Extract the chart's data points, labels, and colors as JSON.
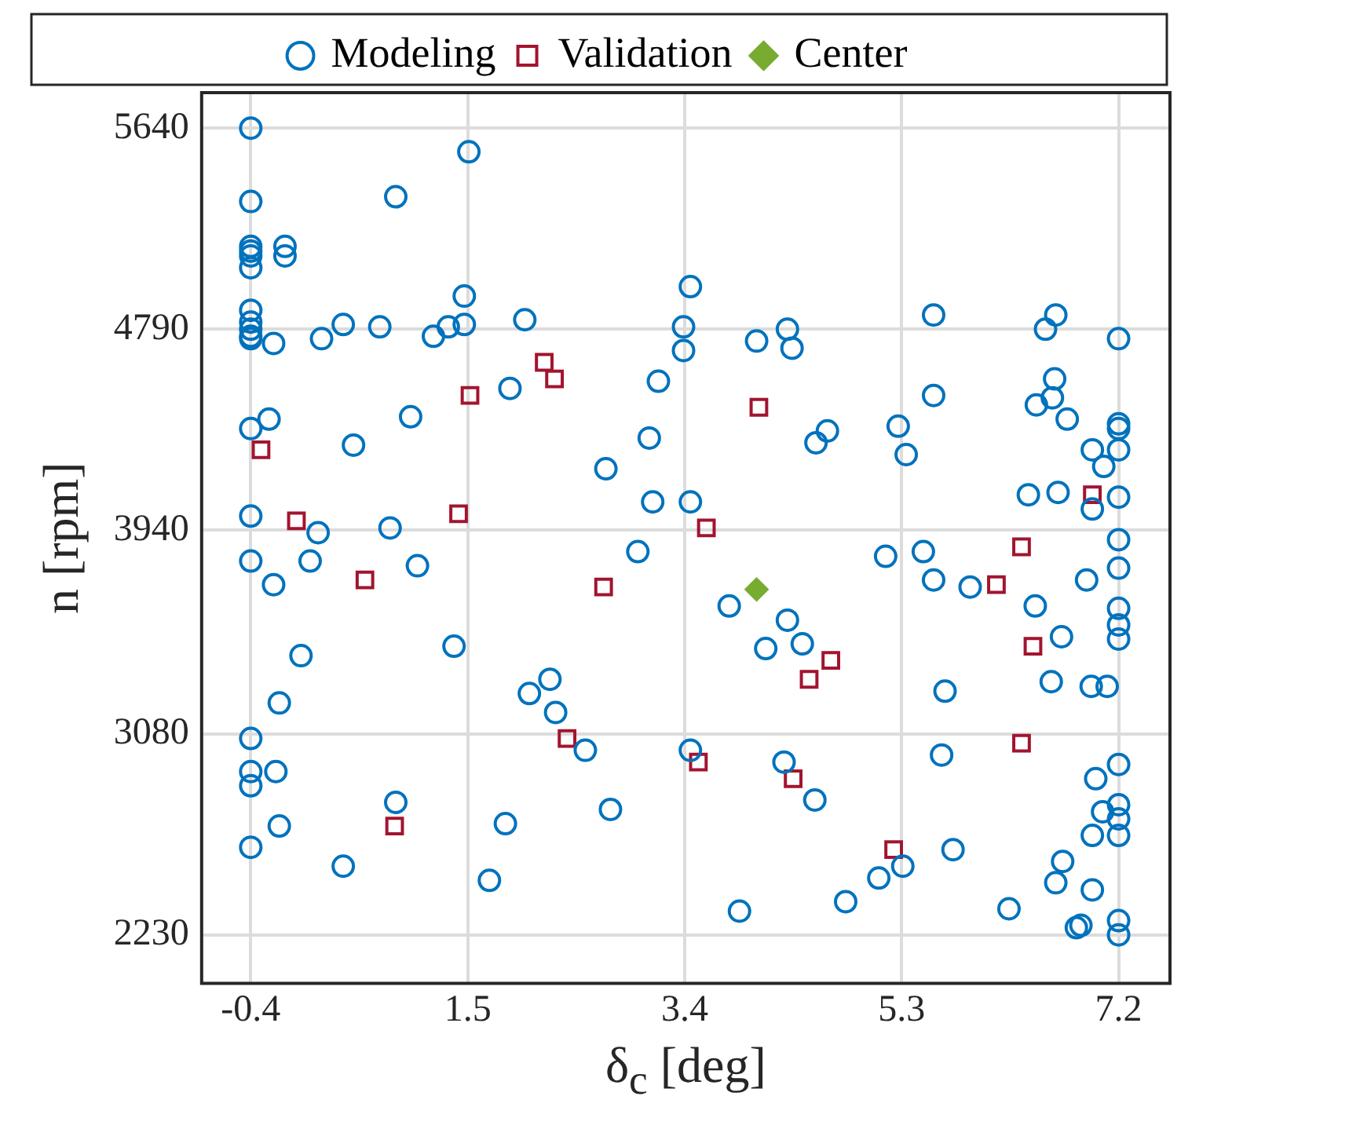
{
  "chart_data": {
    "type": "scatter",
    "xlabel": "δ$_{c}$ [deg]",
    "ylabel": "n [rpm]",
    "xlim": [
      -0.83,
      7.65
    ],
    "ylim": [
      2025,
      5790
    ],
    "xticks": [
      -0.4,
      1.5,
      3.4,
      5.3,
      7.2
    ],
    "yticks": [
      2230,
      3080,
      3940,
      4790,
      5640
    ],
    "grid": true,
    "legend": "top",
    "series": [
      {
        "name": "Modeling",
        "color": "#0072bd",
        "marker": "circle",
        "x": [
          -0.4,
          -0.4,
          -0.4,
          -0.4,
          -0.4,
          -0.4,
          -0.4,
          -0.4,
          -0.4,
          -0.4,
          -0.4,
          -0.4,
          -0.4,
          -0.4,
          -0.4,
          -0.4,
          -0.4,
          -0.4,
          -0.1,
          -0.1,
          -0.2,
          -0.24,
          -0.2,
          -0.15,
          -0.18,
          -0.15,
          0.04,
          0.12,
          0.19,
          0.22,
          0.41,
          0.5,
          0.41,
          0.73,
          0.87,
          0.82,
          0.87,
          1.06,
          1.0,
          1.2,
          1.33,
          1.51,
          1.47,
          1.47,
          1.38,
          1.83,
          1.69,
          1.87,
          2.0,
          2.04,
          2.22,
          2.27,
          2.53,
          2.71,
          2.75,
          2.99,
          3.09,
          3.17,
          3.39,
          3.39,
          3.45,
          3.12,
          3.45,
          3.45,
          4.03,
          4.3,
          4.34,
          3.79,
          4.3,
          4.43,
          4.11,
          4.27,
          4.54,
          3.88,
          4.55,
          4.65,
          4.81,
          5.1,
          5.16,
          5.27,
          5.31,
          5.34,
          5.49,
          5.58,
          5.58,
          5.58,
          5.65,
          5.68,
          5.75,
          5.9,
          6.24,
          6.41,
          6.47,
          6.48,
          6.56,
          6.61,
          6.62,
          6.64,
          6.65,
          6.65,
          6.67,
          6.71,
          6.7,
          6.75,
          6.83,
          6.87,
          6.92,
          6.96,
          6.97,
          6.97,
          6.97,
          6.97,
          7.0,
          7.06,
          7.07,
          7.1,
          7.2,
          7.2,
          7.2,
          7.2,
          7.2,
          7.2,
          7.2,
          7.2,
          7.2,
          7.2,
          7.2,
          7.2,
          7.2,
          7.2,
          7.2,
          7.2
        ],
        "values": [
          5640,
          5330,
          5140,
          5120,
          5100,
          5050,
          4870,
          4820,
          4790,
          4760,
          4750,
          4370,
          4000,
          3810,
          3060,
          2920,
          2860,
          2600,
          5140,
          5100,
          4730,
          4410,
          3710,
          3210,
          2920,
          2690,
          3410,
          3810,
          3930,
          4750,
          4810,
          4300,
          2520,
          4800,
          5350,
          3950,
          2790,
          3790,
          4420,
          4760,
          4800,
          5540,
          4930,
          4810,
          3450,
          2700,
          2460,
          4540,
          4830,
          3250,
          3310,
          3170,
          3010,
          4200,
          2760,
          3850,
          4330,
          4570,
          4800,
          4700,
          4970,
          4060,
          4060,
          3010,
          4740,
          4790,
          4710,
          3620,
          3560,
          3460,
          3440,
          2960,
          2800,
          2330,
          4310,
          4360,
          2370,
          2470,
          3830,
          4380,
          2520,
          4260,
          3850,
          4850,
          4510,
          3730,
          2990,
          3260,
          2590,
          3700,
          2340,
          4090,
          3620,
          4470,
          4790,
          3300,
          4500,
          4580,
          4850,
          2450,
          4100,
          2540,
          3490,
          4410,
          2260,
          2270,
          3730,
          3280,
          4280,
          4030,
          2650,
          2420,
          2890,
          2750,
          4210,
          3280,
          4750,
          4390,
          4370,
          4280,
          4080,
          3900,
          3780,
          3610,
          3540,
          3480,
          2950,
          2780,
          2720,
          2650,
          2290,
          2230
        ]
      },
      {
        "name": "Validation",
        "color": "#a2142f",
        "marker": "square",
        "x": [
          -0.31,
          0.0,
          0.6,
          0.86,
          1.42,
          1.52,
          2.17,
          2.26,
          2.37,
          2.69,
          3.52,
          3.59,
          4.05,
          4.35,
          4.49,
          4.68,
          5.23,
          6.13,
          6.35,
          6.35,
          6.45,
          6.97
        ],
        "values": [
          4280,
          3980,
          3730,
          2690,
          4010,
          4510,
          4650,
          4580,
          3060,
          3700,
          2960,
          3950,
          4460,
          2890,
          3310,
          3390,
          2590,
          3710,
          3870,
          3040,
          3450,
          4090
        ]
      },
      {
        "name": "Center",
        "color": "#77ac30",
        "marker": "diamond",
        "x": [
          4.03
        ],
        "values": [
          3690
        ]
      }
    ]
  }
}
